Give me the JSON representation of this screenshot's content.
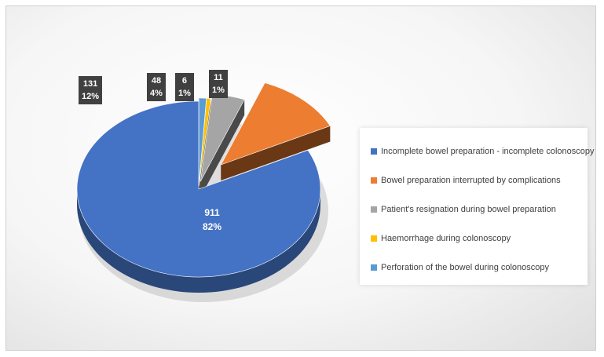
{
  "chart_data": {
    "type": "pie",
    "title": "",
    "style": "3d-exploded",
    "legend_position": "right",
    "slices": [
      {
        "name": "Incomplete bowel preparation - incomplete colonoscopy",
        "value": 911,
        "percent_label": "82%",
        "color": "#4472C4"
      },
      {
        "name": "Bowel preparation interrupted by complications",
        "value": 131,
        "percent_label": "12%",
        "color": "#ED7D31"
      },
      {
        "name": "Patient's resignation during bowel preparation",
        "value": 48,
        "percent_label": "4%",
        "color": "#A5A5A5"
      },
      {
        "name": "Haemorrhage during colonoscopy",
        "value": 6,
        "percent_label": "1%",
        "color": "#FFC000"
      },
      {
        "name": "Perforation of the bowel during colonoscopy",
        "value": 11,
        "percent_label": "1%",
        "color": "#5B9BD5"
      }
    ]
  }
}
